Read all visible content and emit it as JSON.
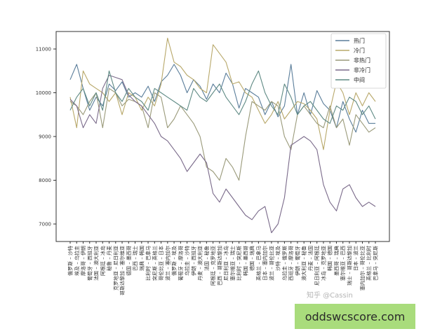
{
  "chart_data": {
    "type": "line",
    "title": "",
    "xlabel": "",
    "ylabel": "",
    "ylim": [
      6600,
      11400
    ],
    "yticks": [
      7000,
      8000,
      9000,
      10000,
      11000
    ],
    "grid": false,
    "legend_position": "top-right",
    "categories": [
      "俄罗斯 – 沙特",
      "埃及 – 乌拉圭",
      "摩洛哥 – 伊朗",
      "葡萄牙 – 西班牙",
      "法国 – 澳大利亚",
      "阿根廷 – 冰岛",
      "秘鲁 – 丹麦",
      "克罗地亚 – 尼日利亚",
      "哥斯达黎加 – 塞尔维亚",
      "德国 – 墨西哥",
      "巴西 – 瑞士",
      "瑞典 – 韩国",
      "比利时 – 巴拿马",
      "突尼斯 – 英格兰",
      "哥伦比亚 – 日本",
      "波兰 – 塞内加尔",
      "俄罗斯 – 埃及",
      "葡萄牙 – 摩洛哥",
      "乌拉圭 – 沙特",
      "伊朗 – 西班牙",
      "丹麦 – 澳大利亚",
      "法国 – 秘鲁",
      "阿根廷 – 克罗地亚",
      "巴西 – 哥斯达黎加",
      "尼日利亚 – 冰岛",
      "塞尔维亚 – 瑞士",
      "比利时 – 突尼斯",
      "韩国 – 墨西哥",
      "德国 – 瑞典",
      "英格兰 – 巴拿马",
      "日本 – 塞内加尔",
      "波兰 – 哥伦比亚",
      "沙特 – 埃及",
      "乌拉圭 – 俄罗斯",
      "西班牙 – 摩洛哥",
      "伊朗 – 葡萄牙",
      "澳大利亚 – 秘鲁",
      "丹麦 – 法国",
      "尼日利亚 – 阿根廷",
      "冰岛 – 克罗地亚",
      "韩国 – 德国",
      "墨西哥 – 瑞典",
      "塞尔维亚 – 巴西",
      "瑞士 – 哥斯达黎加",
      "日本 – 波兰",
      "塞内加尔 – 哥伦比亚",
      "英格兰 – 比利时",
      "巴拿马 – 突尼斯"
    ],
    "series": [
      {
        "name": "热门",
        "color": "#5a7d9a",
        "values": [
          10300,
          10650,
          10100,
          9600,
          9900,
          9700,
          10200,
          10050,
          10250,
          9900,
          10000,
          9900,
          10150,
          9800,
          10250,
          10400,
          10650,
          10400,
          10000,
          10300,
          10150,
          9850,
          10200,
          10000,
          10450,
          10200,
          9650,
          10100,
          10000,
          9900,
          9500,
          9800,
          9450,
          9700,
          10650,
          9500,
          10000,
          9500,
          10050,
          9750,
          9600,
          9200,
          9800,
          9400,
          9100,
          9600,
          9300,
          9300
        ]
      },
      {
        "name": "冷门",
        "color": "#b8a86a",
        "values": [
          9900,
          9200,
          10500,
          10200,
          10100,
          10000,
          9800,
          10000,
          9500,
          10000,
          9900,
          9600,
          9900,
          9700,
          10200,
          11250,
          10700,
          10600,
          10400,
          10300,
          10100,
          10000,
          11100,
          10900,
          10700,
          10200,
          10250,
          10000,
          9900,
          9600,
          9300,
          9500,
          9800,
          9400,
          9600,
          9800,
          9750,
          9600,
          9400,
          8700,
          9600,
          10250,
          10000,
          9500,
          10000,
          9700,
          10000,
          9800
        ]
      },
      {
        "name": "非热门",
        "color": "#9a9a7a",
        "values": [
          9800,
          9700,
          9500,
          9800,
          10000,
          9200,
          10100,
          10000,
          9700,
          9850,
          9800,
          9700,
          9200,
          10000,
          9900,
          9200,
          9400,
          9700,
          9500,
          9300,
          9000,
          8300,
          8200,
          8000,
          8500,
          8300,
          8000,
          9000,
          9800,
          9700,
          9600,
          9800,
          9700,
          9000,
          8700,
          9500,
          9700,
          9500,
          9300,
          9200,
          9700,
          9200,
          9400,
          8800,
          9500,
          9300,
          9100,
          9200
        ]
      },
      {
        "name": "非冷门",
        "color": "#7a6a8a",
        "values": [
          9850,
          9700,
          9200,
          9500,
          9300,
          10100,
          10400,
          10350,
          10300,
          9950,
          9800,
          9700,
          9500,
          9300,
          9000,
          8900,
          8700,
          8500,
          8200,
          8400,
          8600,
          8400,
          7700,
          7500,
          7800,
          7600,
          7400,
          7200,
          7100,
          7300,
          7400,
          6800,
          7000,
          7600,
          8800,
          8900,
          9000,
          8900,
          8700,
          7900,
          7500,
          7300,
          7800,
          7900,
          7600,
          7400,
          7500,
          7400
        ]
      },
      {
        "name": "中间",
        "color": "#5f8a84",
        "values": [
          9600,
          9900,
          10100,
          9700,
          10000,
          9600,
          10500,
          10000,
          9800,
          10100,
          9900,
          9800,
          9600,
          10100,
          10000,
          9900,
          9800,
          9700,
          9600,
          10100,
          9900,
          9800,
          10000,
          10200,
          9900,
          9700,
          9500,
          9800,
          10200,
          10500,
          10000,
          9700,
          9500,
          10200,
          9900,
          9500,
          9700,
          9800,
          9600,
          9400,
          9300,
          9700,
          9600,
          9900,
          9800,
          9500,
          9700,
          9400
        ]
      }
    ]
  },
  "watermark": "知乎 @Cassin",
  "banner_text": "oddswcscore.com"
}
